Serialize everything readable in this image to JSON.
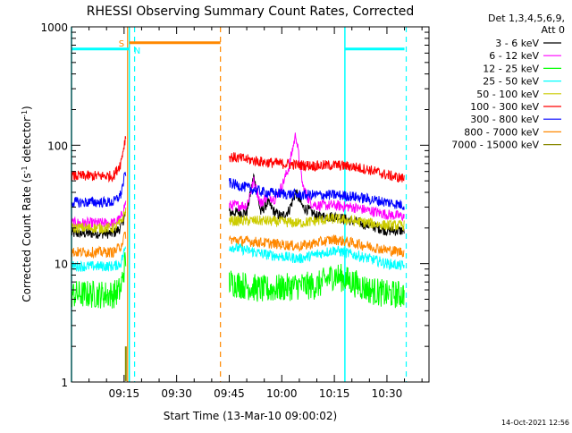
{
  "chart_data": {
    "type": "line",
    "title": "RHESSI Observing Summary Count Rates, Corrected",
    "xlabel": "Start Time (13-Mar-10 09:00:02)",
    "ylabel_main": "Corrected Count Rate (s",
    "ylabel_sup1": "-1",
    "ylabel_mid": " detector",
    "ylabel_sup2": "-1",
    "ylabel_end": ")",
    "yscale": "log",
    "xlim_min": [
      0,
      102
    ],
    "ylim": [
      1,
      1000
    ],
    "x_ticks": [
      {
        "min": 15,
        "label": "09:15"
      },
      {
        "min": 30,
        "label": "09:30"
      },
      {
        "min": 45,
        "label": "09:45"
      },
      {
        "min": 60,
        "label": "10:00"
      },
      {
        "min": 75,
        "label": "10:15"
      },
      {
        "min": 90,
        "label": "10:30"
      }
    ],
    "y_ticks": [
      {
        "value": 1,
        "label": "1"
      },
      {
        "value": 10,
        "label": "10"
      },
      {
        "value": 100,
        "label": "100"
      },
      {
        "value": 1000,
        "label": "1000"
      }
    ],
    "legend_header": [
      "Det 1,3,4,5,6,9,",
      "Att 0"
    ],
    "series": [
      {
        "name": "3 - 6 keV",
        "color": "#000000",
        "segments": [
          {
            "x": [
              0,
              12,
              14,
              15.5
            ],
            "y": [
              18,
              18,
              20,
              27
            ]
          },
          {
            "x": [
              45,
              50,
              52,
              54,
              56,
              58,
              60,
              62,
              64,
              66,
              68,
              70,
              75,
              80,
              85,
              90,
              95
            ],
            "y": [
              27,
              27,
              55,
              27,
              33,
              27,
              25,
              28,
              40,
              30,
              28,
              25,
              25,
              23,
              21,
              19,
              19
            ]
          }
        ]
      },
      {
        "name": "6 - 12 keV",
        "color": "#ff00ff",
        "segments": [
          {
            "x": [
              0,
              12,
              14,
              15.5
            ],
            "y": [
              22,
              22,
              24,
              33
            ]
          },
          {
            "x": [
              45,
              50,
              52,
              54,
              56,
              58,
              60,
              62,
              64,
              66,
              68,
              70,
              75,
              80,
              85,
              90,
              95
            ],
            "y": [
              31,
              31,
              50,
              32,
              38,
              35,
              45,
              65,
              125,
              45,
              33,
              31,
              31,
              30,
              28,
              26,
              25
            ]
          }
        ]
      },
      {
        "name": "12 - 25 keV",
        "color": "#00ff00",
        "segments": [
          {
            "x": [
              0,
              12,
              14,
              15.5
            ],
            "y": [
              5.5,
              5.5,
              6,
              11
            ]
          },
          {
            "x": [
              45,
              55,
              65,
              70,
              75,
              80,
              85,
              90,
              95
            ],
            "y": [
              7,
              6,
              6.5,
              6.5,
              8,
              7,
              6,
              5.5,
              5.5
            ]
          }
        ]
      },
      {
        "name": "25 - 50 keV",
        "color": "#00ffff",
        "segments": [
          {
            "x": [
              0,
              12,
              14,
              15.5
            ],
            "y": [
              9.5,
              9.5,
              10,
              14
            ]
          },
          {
            "x": [
              45,
              55,
              65,
              70,
              75,
              80,
              85,
              90,
              95
            ],
            "y": [
              14,
              12,
              11,
              12,
              13,
              12,
              11,
              10,
              9.5
            ]
          }
        ]
      },
      {
        "name": "50 - 100 keV",
        "color": "#cccc00",
        "segments": [
          {
            "x": [
              0,
              12,
              14,
              15.5
            ],
            "y": [
              20,
              20,
              22,
              28
            ]
          },
          {
            "x": [
              45,
              55,
              65,
              70,
              75,
              80,
              85,
              90,
              95
            ],
            "y": [
              23,
              23,
              22,
              23,
              24,
              23,
              22,
              21,
              21
            ]
          }
        ]
      },
      {
        "name": "100 - 300 keV",
        "color": "#ff0000",
        "segments": [
          {
            "x": [
              0,
              12,
              14,
              15.5
            ],
            "y": [
              55,
              55,
              70,
              120
            ]
          },
          {
            "x": [
              45,
              55,
              65,
              70,
              75,
              80,
              85,
              90,
              95
            ],
            "y": [
              80,
              72,
              68,
              67,
              68,
              66,
              62,
              56,
              52
            ]
          }
        ]
      },
      {
        "name": "300 - 800 keV",
        "color": "#0000ff",
        "segments": [
          {
            "x": [
              0,
              12,
              14,
              15.5
            ],
            "y": [
              33,
              33,
              38,
              60
            ]
          },
          {
            "x": [
              45,
              55,
              65,
              70,
              75,
              80,
              85,
              90,
              95
            ],
            "y": [
              48,
              40,
              38,
              38,
              38,
              37,
              35,
              33,
              31
            ]
          }
        ]
      },
      {
        "name": "800 - 7000 keV",
        "color": "#ff8800",
        "segments": [
          {
            "x": [
              0,
              12,
              14,
              15.5
            ],
            "y": [
              12.5,
              12.5,
              14,
              18
            ]
          },
          {
            "x": [
              45,
              55,
              65,
              70,
              75,
              80,
              85,
              90,
              95
            ],
            "y": [
              16,
              15,
              14,
              15,
              16,
              15,
              14,
              13,
              12.5
            ]
          }
        ]
      },
      {
        "name": "7000 - 15000 keV",
        "color": "#888800",
        "segments": [
          {
            "x": [
              15.5,
              15.5
            ],
            "y": [
              1.02,
              2.0
            ]
          }
        ]
      }
    ],
    "flags": {
      "saa_line": {
        "color": "#ff8800",
        "label": "S",
        "x": [
          16.5,
          42.5
        ],
        "y": 650
      },
      "night_lines": [
        {
          "color": "#00ffff",
          "x": [
            0,
            16.5
          ],
          "y": 650
        },
        {
          "color": "#00ffff",
          "x": [
            78,
            95
          ],
          "y": 650
        }
      ],
      "night_label": "N",
      "vlines_cyan_solid": [
        0,
        16.5,
        78
      ],
      "vlines_cyan_dashed": [
        18,
        95.5
      ],
      "vlines_orange_solid": [
        16
      ],
      "vlines_orange_dashed": [
        42.5
      ]
    }
  },
  "footer": {
    "timestamp": "14-Oct-2021 12:56"
  }
}
